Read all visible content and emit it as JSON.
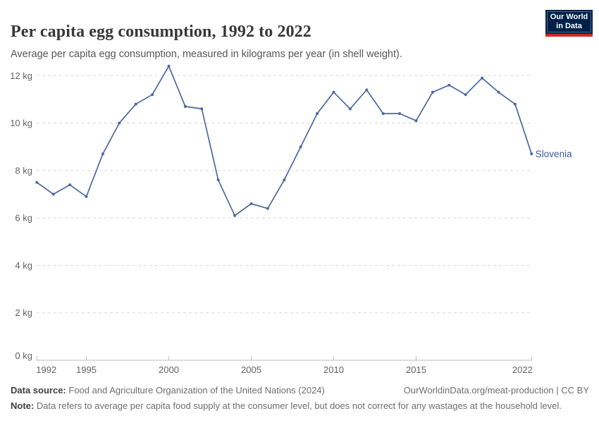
{
  "header": {
    "title": "Per capita egg consumption, 1992 to 2022",
    "subtitle": "Average per capita egg consumption, measured in kilograms per year (in shell weight).",
    "logo": {
      "line1": "Our World",
      "line2": "in Data",
      "bg_color": "#002147",
      "accent_color": "#d02828"
    }
  },
  "chart_data": {
    "type": "line",
    "title": "Per capita egg consumption, 1992 to 2022",
    "subtitle": "Average per capita egg consumption, measured in kilograms per year (in shell weight).",
    "x": [
      1992,
      1993,
      1994,
      1995,
      1996,
      1997,
      1998,
      1999,
      2000,
      2001,
      2002,
      2003,
      2004,
      2005,
      2006,
      2007,
      2008,
      2009,
      2010,
      2011,
      2012,
      2013,
      2014,
      2015,
      2016,
      2017,
      2018,
      2019,
      2020,
      2021,
      2022
    ],
    "series": [
      {
        "name": "Slovenia",
        "color": "#4a69a2",
        "label_color": "#3d5c94",
        "values": [
          7.5,
          7.0,
          7.4,
          6.9,
          8.7,
          10.0,
          10.8,
          11.2,
          12.4,
          10.7,
          10.6,
          7.6,
          6.1,
          6.6,
          6.4,
          7.6,
          9.0,
          10.4,
          11.3,
          10.6,
          11.4,
          10.4,
          10.4,
          10.1,
          11.3,
          11.6,
          11.2,
          11.9,
          11.3,
          10.8,
          8.7
        ]
      }
    ],
    "xlim": [
      1992,
      2022
    ],
    "ylim": [
      0,
      12.5
    ],
    "yticks": [
      0,
      2,
      4,
      6,
      8,
      10,
      12
    ],
    "ytick_labels": [
      "0 kg",
      "2 kg",
      "4 kg",
      "6 kg",
      "8 kg",
      "10 kg",
      "12 kg"
    ],
    "xticks": [
      1992,
      1995,
      2000,
      2005,
      2010,
      2015,
      2022
    ],
    "grid": "horizontal-dashed",
    "grid_color": "#d8d8d8",
    "axis_color": "#bcbcbc",
    "tick_text_color": "#636363",
    "legend": "line-end-label"
  },
  "footer": {
    "source_label": "Data source:",
    "source_text": "Food and Agriculture Organization of the United Nations (2024)",
    "attribution": "OurWorldinData.org/meat-production | CC BY",
    "note_label": "Note:",
    "note_text": "Data refers to average per capita food supply at the consumer level, but does not correct for any wastages at the household level."
  }
}
